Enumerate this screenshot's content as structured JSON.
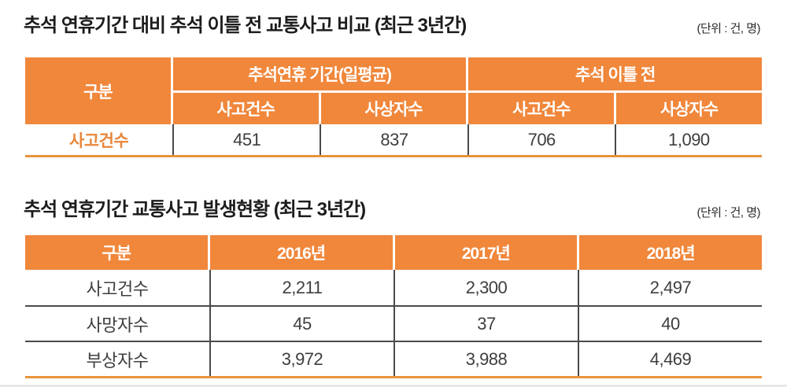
{
  "colors": {
    "header_orange": "#F0873B",
    "border_orange": "#E9923D",
    "row_label_orange": "#E8873B",
    "separator_gray": "#4A4A4A",
    "text_dark": "#3E3E3E",
    "title_color": "#1C1C1C"
  },
  "section1": {
    "title": "추석 연휴기간 대비 추석 이틀 전 교통사고 비교 (최근 3년간)",
    "unit": "(단위 : 건, 명)",
    "table": {
      "corner_header": "구분",
      "group_headers": [
        "추석연휴 기간(일평균)",
        "추석 이틀 전"
      ],
      "sub_headers": [
        "사고건수",
        "사상자수",
        "사고건수",
        "사상자수"
      ],
      "rows": [
        {
          "label": "사고건수",
          "values": [
            "451",
            "837",
            "706",
            "1,090"
          ]
        }
      ]
    }
  },
  "section2": {
    "title": "추석 연휴기간 교통사고 발생현황 (최근 3년간)",
    "unit": "(단위 : 건, 명)",
    "table": {
      "headers": [
        "구분",
        "2016년",
        "2017년",
        "2018년"
      ],
      "rows": [
        {
          "label": "사고건수",
          "values": [
            "2,211",
            "2,300",
            "2,497"
          ]
        },
        {
          "label": "사망자수",
          "values": [
            "45",
            "37",
            "40"
          ]
        },
        {
          "label": "부상자수",
          "values": [
            "3,972",
            "3,988",
            "4,469"
          ]
        }
      ]
    }
  }
}
